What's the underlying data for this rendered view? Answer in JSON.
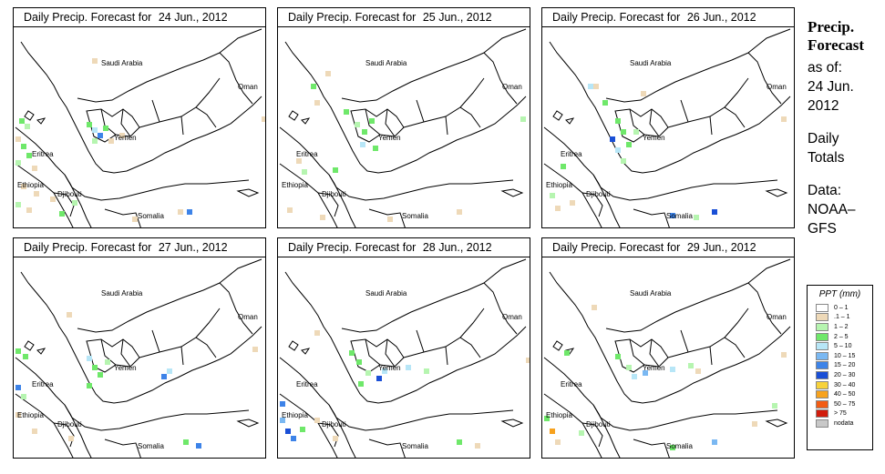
{
  "panels": [
    {
      "title": "Daily Precip. Forecast for",
      "date": "24 Jun., 2012"
    },
    {
      "title": "Daily Precip. Forecast for",
      "date": "25 Jun., 2012"
    },
    {
      "title": "Daily Precip. Forecast for",
      "date": "26 Jun., 2012"
    },
    {
      "title": "Daily Precip. Forecast for",
      "date": "27 Jun., 2012"
    },
    {
      "title": "Daily Precip. Forecast for",
      "date": "28 Jun., 2012"
    },
    {
      "title": "Daily Precip. Forecast for",
      "date": "29 Jun., 2012"
    }
  ],
  "map_labels": {
    "saudi": "Saudi Arabia",
    "oman": "Oman",
    "yemen": "Yemen",
    "eritrea": "Eritrea",
    "ethiopia": "Ethiopia",
    "djibouti": "Djibouti",
    "somalia": "Somalia"
  },
  "side_panel": {
    "title_line1": "Precip.",
    "title_line2": "Forecast",
    "asof": "as of:",
    "date_line1": "24 Jun.",
    "date_line2": "2012",
    "daily_line1": "Daily",
    "daily_line2": "Totals",
    "data_line1": "Data:",
    "data_line2": "NOAA–",
    "data_line3": "GFS"
  },
  "legend": {
    "title": "PPT (mm)",
    "items": [
      {
        "label": "0 – 1",
        "color": "#ffffff"
      },
      {
        "label": ".1 – 1",
        "color": "#eed9b8"
      },
      {
        "label": "1 – 2",
        "color": "#b6f5b0"
      },
      {
        "label": "2 – 5",
        "color": "#6fe86a"
      },
      {
        "label": "5 – 10",
        "color": "#b7e6f7"
      },
      {
        "label": "10 – 15",
        "color": "#7ab8f2"
      },
      {
        "label": "15 – 20",
        "color": "#3d83e8"
      },
      {
        "label": "20 – 30",
        "color": "#1a4fd6"
      },
      {
        "label": "30 – 40",
        "color": "#f7d23a"
      },
      {
        "label": "40 – 50",
        "color": "#f7a21e"
      },
      {
        "label": "50 – 75",
        "color": "#f25c14"
      },
      {
        "label": "> 75",
        "color": "#d11c0c"
      },
      {
        "label": "nodata",
        "color": "#c8c8c8"
      }
    ]
  }
}
